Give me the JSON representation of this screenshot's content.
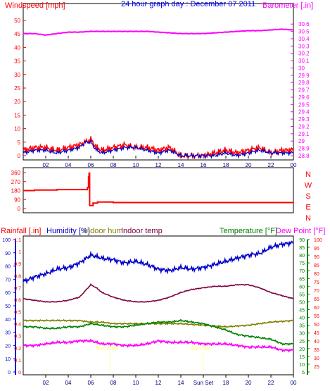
{
  "colors": {
    "windspeed": "#ff0000",
    "gust": "#0000cc",
    "barometer": "#ff00ff",
    "rain": "#ff0000",
    "humidity": "#0000cc",
    "indoor_hum": "#808000",
    "indoor_temp": "#800040",
    "temperature": "#008000",
    "dewpoint": "#ff00ff",
    "title": "#0000ff",
    "sunrise": "#ffff66"
  },
  "chart_data": [
    {
      "type": "line",
      "panel": "wind_baro",
      "title": "24 hour graph day : December 07 2011",
      "left_label": "Windspeed [mph]",
      "right_label": "Barometer [.in]",
      "x_tick_labels": [
        "02",
        "04",
        "06",
        "08",
        "10",
        "12",
        "14",
        "16",
        "18",
        "20",
        "22",
        "00"
      ],
      "left_ticks": [
        "0",
        "5",
        "10",
        "15",
        "20",
        "25",
        "30",
        "35",
        "40",
        "45",
        "50"
      ],
      "left_ylim": [
        0,
        50
      ],
      "right_ticks": [
        "28.8",
        "28.9",
        "29",
        "29.1",
        "29.2",
        "29.3",
        "29.4",
        "29.5",
        "29.6",
        "29.7",
        "29.8",
        "29.9",
        "30",
        "30.1",
        "30.2",
        "30.3",
        "30.4",
        "30.5",
        "30.6"
      ],
      "right_ylim": [
        28.8,
        30.65
      ],
      "xlim": [
        0,
        24
      ],
      "series": [
        {
          "key": "barometer",
          "axis": "right",
          "x": [
            0,
            1,
            2,
            3,
            4,
            5,
            6,
            7,
            8,
            9,
            10,
            11,
            12,
            13,
            14,
            15,
            16,
            17,
            18,
            19,
            20,
            21,
            22,
            23,
            24
          ],
          "values": [
            30.47,
            30.47,
            30.45,
            30.47,
            30.49,
            30.49,
            30.5,
            30.5,
            30.5,
            30.5,
            30.5,
            30.5,
            30.49,
            30.48,
            30.47,
            30.47,
            30.47,
            30.48,
            30.49,
            30.5,
            30.51,
            30.51,
            30.52,
            30.53,
            30.52
          ]
        },
        {
          "key": "gust",
          "axis": "left",
          "x": [
            0,
            1,
            2,
            3,
            4,
            5,
            5.5,
            6,
            6.5,
            7,
            8,
            9,
            10,
            11,
            12,
            13,
            14,
            15,
            16,
            17,
            18,
            19,
            20,
            21,
            22,
            23,
            24
          ],
          "values": [
            1,
            2,
            2,
            1,
            2,
            3,
            5,
            5,
            2,
            1,
            2,
            3,
            3,
            2,
            1,
            2,
            0,
            0,
            0,
            0,
            1,
            0,
            1,
            2,
            1,
            1,
            1
          ]
        },
        {
          "key": "windspeed",
          "axis": "left",
          "x": [
            0,
            1,
            2,
            3,
            4,
            5,
            5.5,
            6,
            6.5,
            7,
            8,
            9,
            10,
            11,
            12,
            13,
            14,
            15,
            16,
            17,
            18,
            19,
            20,
            21,
            22,
            23,
            24
          ],
          "values": [
            2,
            3,
            3,
            2,
            3,
            4,
            5,
            6,
            3,
            2,
            3,
            4,
            3,
            3,
            2,
            3,
            0,
            0,
            0,
            1,
            2,
            1,
            2,
            3,
            1,
            2,
            2
          ]
        }
      ]
    },
    {
      "type": "line",
      "panel": "wind_direction",
      "left_ticks": [
        "0",
        "90",
        "180",
        "270",
        "360"
      ],
      "left_ylim": [
        0,
        360
      ],
      "right_ticks": [
        "N",
        "W",
        "S",
        "E",
        "N"
      ],
      "xlim": [
        0,
        24
      ],
      "series": [
        {
          "key": "winddir",
          "x": [
            0,
            1,
            3,
            4.5,
            5.7,
            5.8,
            5.85,
            5.9,
            6,
            6.2,
            6.6,
            7.5,
            8,
            24
          ],
          "values": [
            180,
            185,
            190,
            190,
            210,
            320,
            355,
            30,
            30,
            55,
            65,
            65,
            60,
            60
          ]
        }
      ]
    },
    {
      "type": "line",
      "panel": "temp_hum_rain",
      "labels": [
        "Rainfall [.in]",
        "Humidity [%]",
        "Indoor hum",
        "Indoor temp",
        "Temperature [°F]",
        "Dew Point [°F]"
      ],
      "humidity_ticks": [
        "0",
        "10",
        "20",
        "30",
        "40",
        "50",
        "60",
        "70",
        "80",
        "90",
        "100"
      ],
      "rain_ticks": [
        "0",
        "0.1",
        "0.2",
        "0.3",
        "0.4",
        "0.5",
        "0.6",
        "0.7",
        "0.8",
        "0.9",
        "1",
        "1.1"
      ],
      "temp_ticks": [
        "5",
        "10",
        "15",
        "20",
        "25",
        "30",
        "35",
        "40",
        "45",
        "50",
        "55",
        "60",
        "65",
        "70",
        "75",
        "80",
        "85",
        "90"
      ],
      "dewpoint_ticks": [
        "25",
        "30",
        "35",
        "40",
        "45",
        "50",
        "55",
        "60",
        "65",
        "70",
        "75",
        "80",
        "85",
        "90",
        "95",
        "100"
      ],
      "x_tick_labels": [
        "02",
        "04",
        "06",
        "08",
        "10",
        "12",
        "14",
        "Sun Set",
        "18",
        "20",
        "22",
        "00"
      ],
      "sun_markers": [
        "Sun Rise",
        "Sun Set"
      ],
      "temp_ylim": [
        5,
        90
      ],
      "xlim": [
        0,
        24
      ],
      "series": [
        {
          "key": "humidity",
          "axis": "temp",
          "x": [
            0,
            1,
            2,
            3,
            4,
            5,
            6,
            7,
            8,
            9,
            10,
            11,
            12,
            13,
            14,
            15,
            16,
            17,
            18,
            19,
            20,
            21,
            22,
            23,
            24
          ],
          "values": [
            63,
            66,
            68,
            71,
            72,
            75,
            80,
            78,
            77,
            75,
            76,
            74,
            71,
            70,
            72,
            71,
            72,
            74,
            76,
            78,
            80,
            81,
            85,
            87,
            88
          ]
        },
        {
          "key": "indoor_temp",
          "axis": "temp",
          "x": [
            0,
            1,
            2,
            3,
            4,
            5,
            5.5,
            6,
            6.5,
            7,
            8,
            9,
            10,
            11,
            12,
            13,
            14,
            15,
            16,
            17,
            18,
            19,
            20,
            21,
            22,
            23,
            24
          ],
          "values": [
            52,
            51,
            50,
            50,
            51,
            53,
            57,
            61,
            59,
            56,
            53,
            51,
            50,
            50,
            51,
            53,
            56,
            58,
            59,
            60,
            60,
            61,
            61,
            59,
            56,
            54,
            52
          ]
        },
        {
          "key": "indoor_hum",
          "axis": "temp",
          "x": [
            0,
            2,
            4,
            5,
            6,
            7,
            8,
            10,
            12,
            14,
            16,
            18,
            20,
            22,
            24
          ],
          "values": [
            38,
            38,
            38,
            38,
            37,
            37,
            36,
            36,
            36,
            36,
            35,
            34,
            35,
            37,
            38
          ]
        },
        {
          "key": "temperature",
          "axis": "temp",
          "x": [
            0,
            1,
            2,
            3,
            4,
            5,
            6,
            7,
            8,
            9,
            10,
            11,
            12,
            13,
            14,
            15,
            16,
            17,
            18,
            19,
            20,
            21,
            22,
            23,
            24
          ],
          "values": [
            34,
            34,
            33,
            33,
            34,
            34,
            36,
            35,
            34,
            34,
            35,
            36,
            37,
            37,
            38,
            37,
            36,
            34,
            32,
            29,
            28,
            27,
            26,
            23,
            23
          ]
        },
        {
          "key": "dewpoint",
          "axis": "temp",
          "x": [
            0,
            1,
            2,
            3,
            4,
            5,
            6,
            7,
            8,
            9,
            10,
            11,
            12,
            13,
            14,
            15,
            16,
            17,
            18,
            19,
            20,
            21,
            22,
            23,
            24
          ],
          "values": [
            22,
            22,
            23,
            24,
            24,
            25,
            25,
            23,
            23,
            22,
            22,
            23,
            25,
            24,
            24,
            24,
            23,
            23,
            23,
            22,
            21,
            21,
            21,
            19,
            19
          ]
        }
      ]
    }
  ]
}
